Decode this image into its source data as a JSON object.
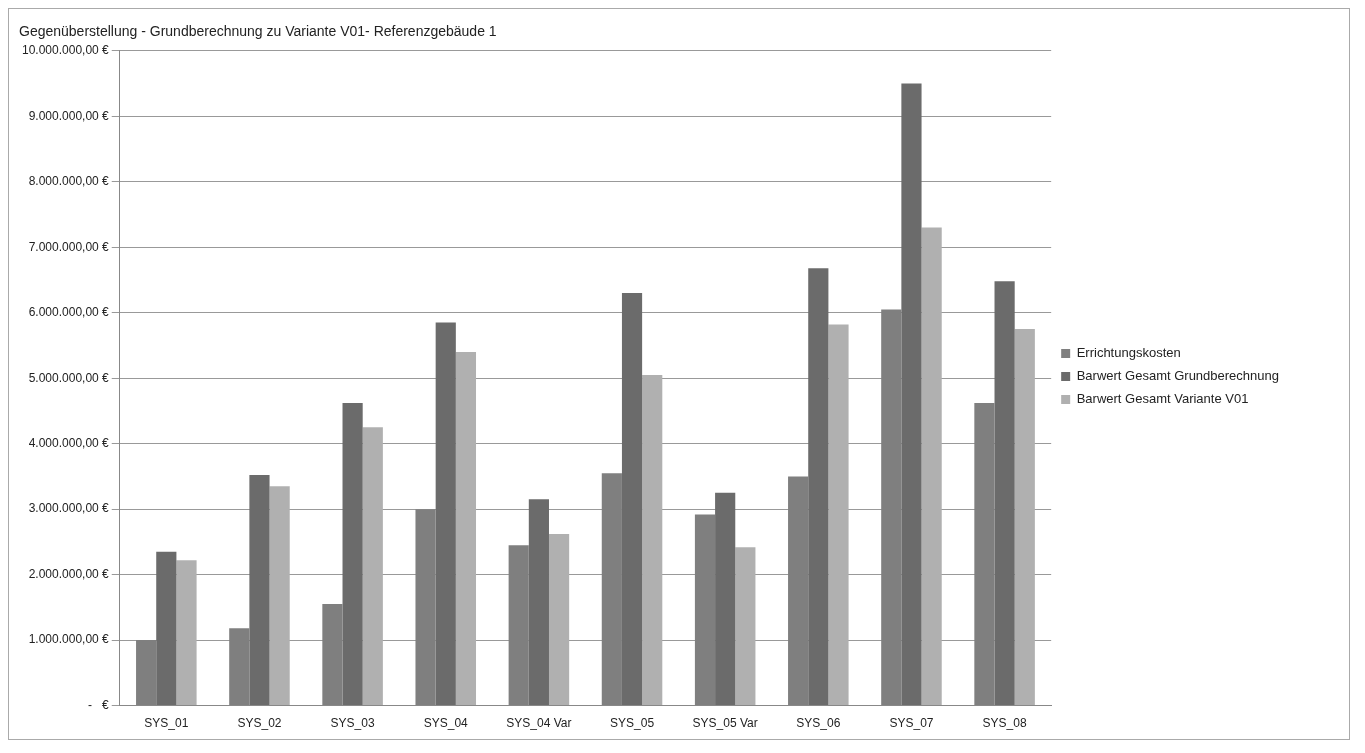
{
  "chart_data": {
    "type": "bar",
    "title": "Gegenüberstellung - Grundberechnung zu Variante V01- Referenzgebäude 1",
    "categories": [
      "SYS_01",
      "SYS_02",
      "SYS_03",
      "SYS_04",
      "SYS_04 Var",
      "SYS_05",
      "SYS_05 Var",
      "SYS_06",
      "SYS_07",
      "SYS_08"
    ],
    "series": [
      {
        "name": "Errichtungskosten",
        "color": "#7f7f7f",
        "values": [
          1000000,
          1180000,
          1550000,
          3000000,
          2450000,
          3550000,
          2920000,
          3500000,
          6050000,
          4620000
        ]
      },
      {
        "name": "Barwert Gesamt Grundberechnung",
        "color": "#6b6b6b",
        "values": [
          2350000,
          3520000,
          4620000,
          5850000,
          3150000,
          6300000,
          3250000,
          6680000,
          9500000,
          6480000
        ]
      },
      {
        "name": "Barwert Gesamt Variante V01",
        "color": "#b0b0b0",
        "values": [
          2220000,
          3350000,
          4250000,
          5400000,
          2620000,
          5050000,
          2420000,
          5820000,
          7300000,
          5750000
        ]
      }
    ],
    "ylim": [
      0,
      10000000
    ],
    "yticks": [
      {
        "value": 0,
        "label": "-   €"
      },
      {
        "value": 1000000,
        "label": "1.000.000,00 €"
      },
      {
        "value": 2000000,
        "label": "2.000.000,00 €"
      },
      {
        "value": 3000000,
        "label": "3.000.000,00 €"
      },
      {
        "value": 4000000,
        "label": "4.000.000,00 €"
      },
      {
        "value": 5000000,
        "label": "5.000.000,00 €"
      },
      {
        "value": 6000000,
        "label": "6.000.000,00 €"
      },
      {
        "value": 7000000,
        "label": "7.000.000,00 €"
      },
      {
        "value": 8000000,
        "label": "8.000.000,00 €"
      },
      {
        "value": 9000000,
        "label": "9.000.000,00 €"
      },
      {
        "value": 10000000,
        "label": "10.000.000,00 €"
      }
    ],
    "grid": "y",
    "legend": "right"
  }
}
